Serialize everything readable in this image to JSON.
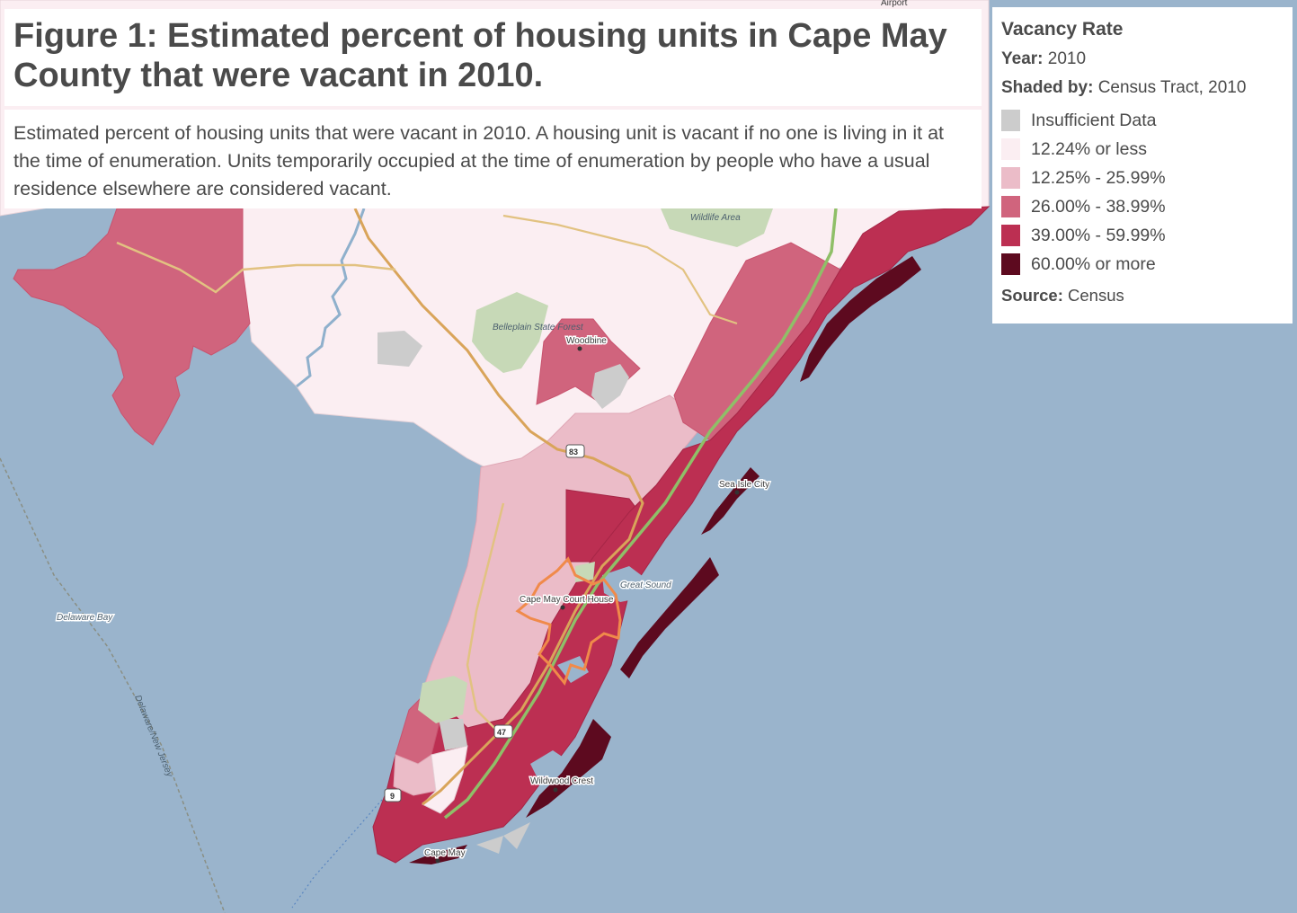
{
  "figure": {
    "title": "Figure 1: Estimated percent of housing units in Cape May County that were vacant in 2010.",
    "description": "Estimated percent of housing units that were vacant in 2010. A housing unit is vacant if no one is living in it at the time of enumeration. Units temporarily occupied at the time of enumeration by people who have a usual residence elsewhere are considered vacant."
  },
  "legend": {
    "title": "Vacancy Rate",
    "year_label": "Year:",
    "year_value": "2010",
    "shaded_label": "Shaded by:",
    "shaded_value": "Census Tract, 2010",
    "items": [
      {
        "label": "Insufficient Data",
        "color": "#cccccc"
      },
      {
        "label": "12.24% or less",
        "color": "#fbeef2"
      },
      {
        "label": "12.25% - 25.99%",
        "color": "#ebbcc8"
      },
      {
        "label": "26.00% - 38.99%",
        "color": "#d0647d"
      },
      {
        "label": "39.00% - 59.99%",
        "color": "#bc2f52"
      },
      {
        "label": "60.00% or more",
        "color": "#5d0a1f"
      }
    ],
    "source_label": "Source:",
    "source_value": "Census"
  },
  "map": {
    "colors": {
      "water": "#9ab4cc",
      "land": "#f2efea",
      "park": "#c7d9b7",
      "highway": "#d9a45a",
      "road": "#e2c281",
      "parkway": "#8fbf68",
      "highlight_outline": "#f08a4a"
    },
    "places": {
      "woodbine": "Woodbine",
      "sea_isle_city": "Sea Isle City",
      "cape_may_court_house": "Cape May Court House",
      "wildwood_crest": "Wildwood Crest",
      "cape_may": "Cape May"
    },
    "water_labels": {
      "delaware_bay": "Delaware Bay",
      "great_sound": "Great Sound",
      "delaware_new_jersey": "Delaware/New Jersey"
    },
    "park_labels": {
      "belleplain": "Belleplain State Forest",
      "wildlife_area": "Wildlife Area"
    },
    "shields": [
      "83",
      "47",
      "9"
    ],
    "partial_labels": {
      "airport": "Airport"
    }
  }
}
